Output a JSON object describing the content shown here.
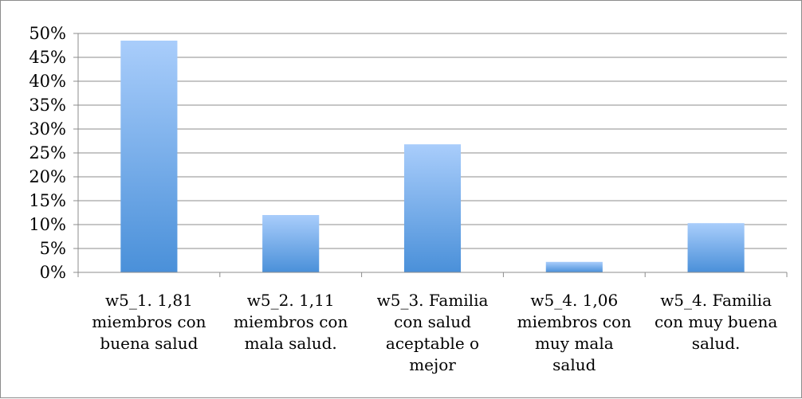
{
  "chart_data": {
    "type": "bar",
    "title": "",
    "xlabel": "",
    "ylabel": "",
    "categories": [
      "w5_1. 1,81 miembros con buena salud",
      "w5_2. 1,11 miembros con mala salud.",
      "w5_3. Familia con salud aceptable o mejor",
      "w5_4. 1,06 miembros con muy mala salud",
      "w5_4. Familia con muy buena salud."
    ],
    "category_label_lines": [
      [
        "w5_1. 1,81",
        "miembros con",
        "buena salud"
      ],
      [
        "w5_2. 1,11",
        "miembros con",
        "mala salud."
      ],
      [
        "w5_3. Familia",
        "con salud",
        "aceptable o",
        "mejor"
      ],
      [
        "w5_4. 1,06",
        "miembros con",
        "muy mala",
        "salud"
      ],
      [
        "w5_4. Familia",
        "con muy buena",
        "salud."
      ]
    ],
    "values": [
      0.485,
      0.12,
      0.268,
      0.022,
      0.103
    ],
    "ylim": [
      0,
      0.5
    ],
    "yticks": [
      "0%",
      "5%",
      "10%",
      "15%",
      "20%",
      "25%",
      "30%",
      "35%",
      "40%",
      "45%",
      "50%"
    ],
    "grid": true,
    "legend": "none",
    "colors": {
      "bar_top": "#a9cdfb",
      "bar_bottom": "#4a90d9",
      "grid": "#8c8c8c",
      "axis": "#8c8c8c"
    }
  }
}
